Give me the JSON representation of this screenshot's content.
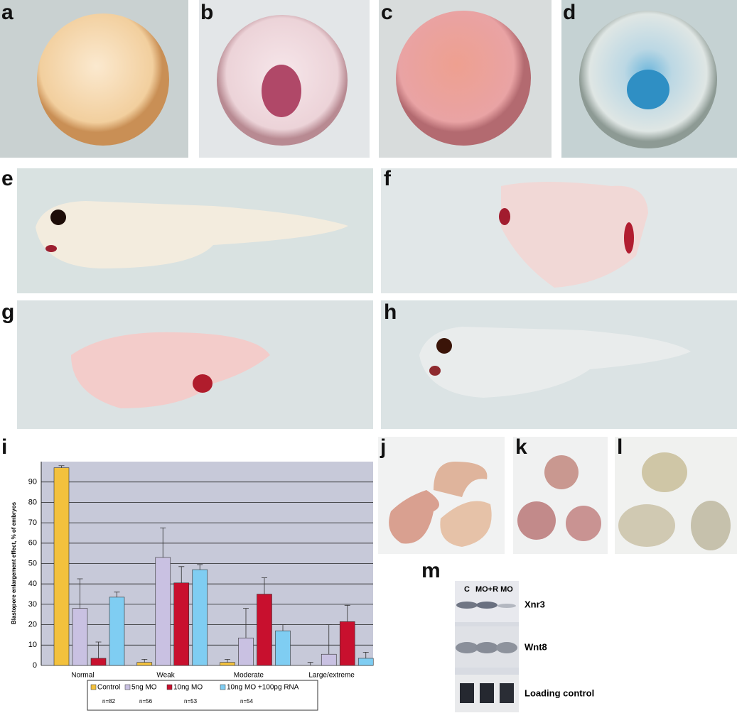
{
  "panels": {
    "labels": [
      "a",
      "b",
      "c",
      "d",
      "e",
      "f",
      "g",
      "h",
      "i",
      "j",
      "k",
      "l",
      "m"
    ]
  },
  "chart_data": {
    "type": "bar",
    "y_label": "Blastopore enlargement effect, % of embryos",
    "categories": [
      "Normal",
      "Weak",
      "Moderate",
      "Large/extreme"
    ],
    "series": [
      {
        "name": "Control",
        "n": "n=82",
        "color": "#f3c13d",
        "values": [
          97,
          1.5,
          1.5,
          0
        ],
        "errors": [
          1,
          1.5,
          1.5,
          1.5
        ]
      },
      {
        "name": "5ng MO",
        "n": "n=56",
        "color": "#c9c1e2",
        "values": [
          28,
          53,
          13.5,
          5.5
        ],
        "errors": [
          14.5,
          14.5,
          14.5,
          14.5
        ]
      },
      {
        "name": "10ng MO",
        "n": "n=53",
        "color": "#c8102e",
        "values": [
          3.5,
          40.5,
          35,
          21.5
        ],
        "errors": [
          8,
          8,
          8,
          8
        ]
      },
      {
        "name": "10ng MO +100pg RNA",
        "n": "n=54",
        "color": "#7fcdf2",
        "values": [
          33.5,
          47,
          17,
          3.5
        ],
        "errors": [
          2.5,
          2.5,
          3,
          3
        ]
      }
    ],
    "ylim": [
      0,
      100
    ],
    "yticks": [
      0,
      10,
      20,
      30,
      40,
      50,
      60,
      70,
      80,
      90
    ],
    "grid": true
  },
  "blot": {
    "lanes": [
      "C",
      "MO+R",
      "MO"
    ],
    "bands": [
      "Xnr3",
      "Wnt8",
      "Loading control"
    ]
  }
}
